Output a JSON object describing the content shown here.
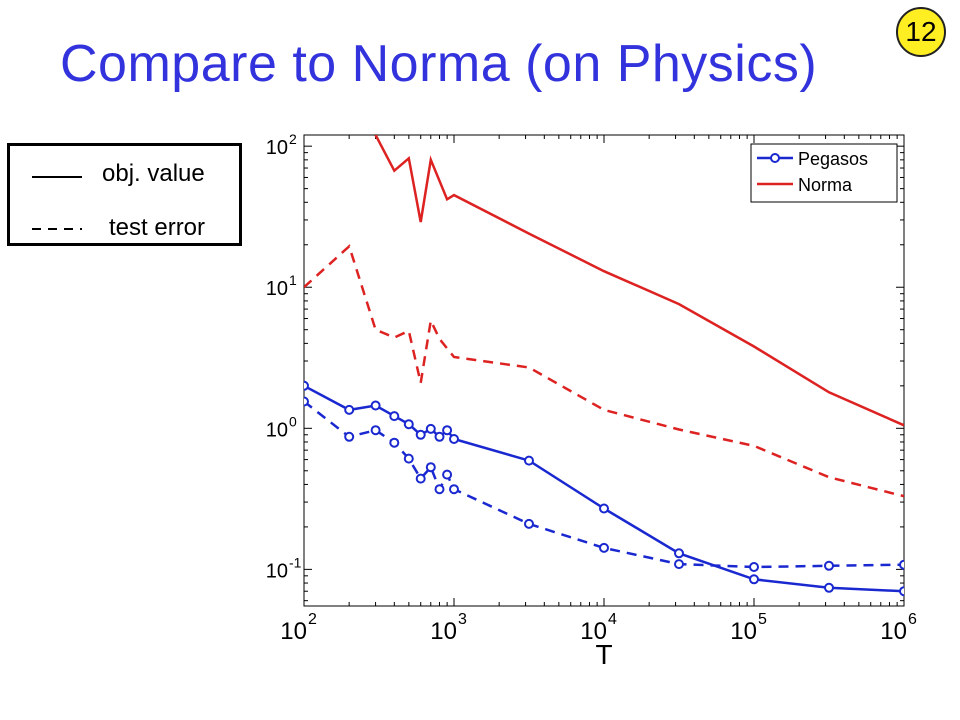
{
  "slide": {
    "title": "Compare to Norma (on Physics)",
    "number": "12"
  },
  "style_legend": {
    "solid_label": "obj. value",
    "dashed_label": "test error"
  },
  "colors": {
    "title": "#3333dd",
    "pegasos": "#1a28d0",
    "norma": "#dd2222",
    "badge": "#ffee22"
  },
  "chart_data": {
    "type": "line",
    "x_scale": "log",
    "y_scale": "log",
    "xlabel": "T",
    "ylabel": "",
    "xlim": [
      100,
      1000000
    ],
    "ylim": [
      0.055,
      120
    ],
    "x_ticks": [
      {
        "value": 100,
        "base": "10",
        "exp": "2"
      },
      {
        "value": 1000,
        "base": "10",
        "exp": "3"
      },
      {
        "value": 10000,
        "base": "10",
        "exp": "4"
      },
      {
        "value": 100000,
        "base": "10",
        "exp": "5"
      },
      {
        "value": 1000000,
        "base": "10",
        "exp": "6"
      }
    ],
    "y_ticks": [
      {
        "value": 100,
        "base": "10",
        "exp": "2"
      },
      {
        "value": 10,
        "base": "10",
        "exp": "1"
      },
      {
        "value": 1,
        "base": "10",
        "exp": "0"
      },
      {
        "value": 0.1,
        "base": "10",
        "exp": "-1"
      }
    ],
    "legend": {
      "position": "top-right",
      "entries": [
        "Pegasos",
        "Norma"
      ]
    },
    "series": [
      {
        "name": "Pegasos",
        "metric": "obj. value",
        "style": "solid",
        "color": "#1a28d0",
        "markers": true,
        "x": [
          100,
          200,
          300,
          400,
          500,
          600,
          700,
          800,
          900,
          1000,
          3160,
          10000,
          31600,
          100000,
          316000,
          1000000
        ],
        "y": [
          2.0,
          1.35,
          1.45,
          1.22,
          1.07,
          0.9,
          0.99,
          0.87,
          0.97,
          0.84,
          0.59,
          0.27,
          0.13,
          0.085,
          0.074,
          0.07
        ]
      },
      {
        "name": "Pegasos",
        "metric": "test error",
        "style": "dashed",
        "color": "#1a28d0",
        "markers": true,
        "x": [
          100,
          200,
          300,
          400,
          500,
          600,
          700,
          800,
          900,
          1000,
          3160,
          10000,
          31600,
          100000,
          316000,
          1000000
        ],
        "y": [
          1.55,
          0.87,
          0.97,
          0.79,
          0.61,
          0.44,
          0.53,
          0.37,
          0.47,
          0.37,
          0.21,
          0.142,
          0.109,
          0.104,
          0.106,
          0.108
        ]
      },
      {
        "name": "Norma",
        "metric": "obj. value",
        "style": "solid",
        "color": "#dd2222",
        "markers": false,
        "x": [
          300,
          400,
          500,
          600,
          700,
          900,
          1000,
          3160,
          10000,
          31600,
          100000,
          316000,
          1000000
        ],
        "y": [
          120,
          67,
          82,
          29,
          80,
          42,
          45,
          24,
          13,
          7.6,
          3.8,
          1.8,
          1.05
        ]
      },
      {
        "name": "Norma",
        "metric": "test error",
        "style": "dashed",
        "color": "#dd2222",
        "markers": false,
        "x": [
          100,
          200,
          300,
          400,
          500,
          600,
          700,
          800,
          1000,
          3160,
          10000,
          31600,
          100000,
          316000,
          1000000
        ],
        "y": [
          10,
          19.5,
          5,
          4.4,
          4.9,
          2.1,
          5.8,
          4.3,
          3.2,
          2.7,
          1.35,
          0.98,
          0.75,
          0.45,
          0.33
        ]
      }
    ]
  }
}
